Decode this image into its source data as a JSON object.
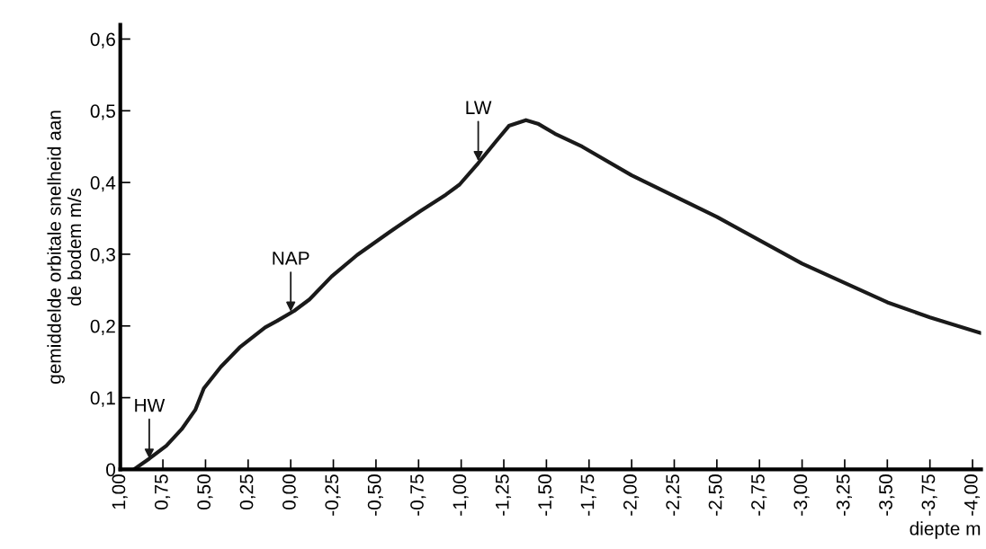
{
  "chart_data": {
    "type": "line",
    "xlabel": "diepte m",
    "ylabel": "gemiddelde orbitale snelheid aan\nde bodem m/s",
    "xlim": [
      1.0,
      -4.05
    ],
    "ylim": [
      0,
      0.62
    ],
    "xticks": [
      {
        "value": 1.0,
        "label": "1,00"
      },
      {
        "value": 0.75,
        "label": "0,75"
      },
      {
        "value": 0.5,
        "label": "0,50"
      },
      {
        "value": 0.25,
        "label": "0,25"
      },
      {
        "value": 0.0,
        "label": "0,00"
      },
      {
        "value": -0.25,
        "label": "-0,25"
      },
      {
        "value": -0.5,
        "label": "-0,50"
      },
      {
        "value": -0.75,
        "label": "-0,75"
      },
      {
        "value": -1.0,
        "label": "-1,00"
      },
      {
        "value": -1.25,
        "label": "-1,25"
      },
      {
        "value": -1.5,
        "label": "-1,50"
      },
      {
        "value": -1.75,
        "label": "-1,75"
      },
      {
        "value": -2.0,
        "label": "-2,00"
      },
      {
        "value": -2.25,
        "label": "-2,25"
      },
      {
        "value": -2.5,
        "label": "-2,50"
      },
      {
        "value": -2.75,
        "label": "-2,75"
      },
      {
        "value": -3.0,
        "label": "-3,00"
      },
      {
        "value": -3.25,
        "label": "-3,25"
      },
      {
        "value": -3.5,
        "label": "-3,50"
      },
      {
        "value": -3.75,
        "label": "-3,75"
      },
      {
        "value": -4.0,
        "label": "-4,00"
      }
    ],
    "yticks": [
      0,
      {
        "value": 0.1,
        "label": "0,1"
      },
      {
        "value": 0.2,
        "label": "0,2"
      },
      {
        "value": 0.3,
        "label": "0,3"
      },
      {
        "value": 0.4,
        "label": "0,4"
      },
      {
        "value": 0.5,
        "label": "0,5"
      },
      {
        "value": 0.6,
        "label": "0,6"
      }
    ],
    "grid": false,
    "legend": false,
    "marker": "none",
    "line_style": "solid",
    "series": [
      {
        "color": "#1a1a1a",
        "x": [
          0.92,
          0.83,
          0.73,
          0.64,
          0.56,
          0.51,
          0.41,
          0.3,
          0.15,
          0.08,
          -0.02,
          -0.11,
          -0.24,
          -0.39,
          -0.58,
          -0.76,
          -0.91,
          -0.99,
          -1.1,
          -1.21,
          -1.28,
          -1.38,
          -1.45,
          -1.55,
          -1.71,
          -2.0,
          -2.5,
          -3.0,
          -3.5,
          -3.75,
          -4.05
        ],
        "values": [
          0,
          0.015,
          0.033,
          0.056,
          0.083,
          0.113,
          0.143,
          0.17,
          0.198,
          0.207,
          0.221,
          0.237,
          0.269,
          0.299,
          0.331,
          0.36,
          0.383,
          0.397,
          0.427,
          0.459,
          0.479,
          0.487,
          0.482,
          0.468,
          0.45,
          0.41,
          0.352,
          0.287,
          0.233,
          0.212,
          0.19
        ]
      }
    ],
    "annotations": [
      {
        "text": "HW",
        "x": 0.83,
        "y": 0.015
      },
      {
        "text": "NAP",
        "x": 0.0,
        "y": 0.22
      },
      {
        "text": "LW",
        "x": -1.1,
        "y": 0.43
      }
    ]
  }
}
